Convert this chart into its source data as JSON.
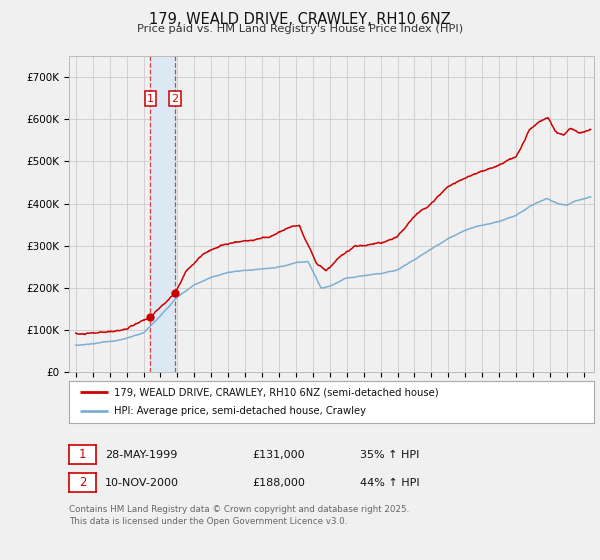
{
  "title": "179, WEALD DRIVE, CRAWLEY, RH10 6NZ",
  "subtitle": "Price paid vs. HM Land Registry's House Price Index (HPI)",
  "background_color": "#f0f0f0",
  "plot_background_color": "#f0f0f0",
  "grid_color": "#cccccc",
  "red_line_color": "#cc0000",
  "blue_line_color": "#7cafd4",
  "purchase1": {
    "date_num": 1999.41,
    "price": 131000,
    "label": "1"
  },
  "purchase2": {
    "date_num": 2000.86,
    "price": 188000,
    "label": "2"
  },
  "vline_color": "#cc4444",
  "vband_color": "#dce9f5",
  "ymax": 750000,
  "ymin": 0,
  "xmin": 1994.6,
  "xmax": 2025.6,
  "yticks": [
    0,
    100000,
    200000,
    300000,
    400000,
    500000,
    600000,
    700000
  ],
  "ytick_labels": [
    "£0",
    "£100K",
    "£200K",
    "£300K",
    "£400K",
    "£500K",
    "£600K",
    "£700K"
  ],
  "legend_red_label": "179, WEALD DRIVE, CRAWLEY, RH10 6NZ (semi-detached house)",
  "legend_blue_label": "HPI: Average price, semi-detached house, Crawley",
  "table_row1": [
    "1",
    "28-MAY-1999",
    "£131,000",
    "35% ↑ HPI"
  ],
  "table_row2": [
    "2",
    "10-NOV-2000",
    "£188,000",
    "44% ↑ HPI"
  ],
  "footnote": "Contains HM Land Registry data © Crown copyright and database right 2025.\nThis data is licensed under the Open Government Licence v3.0."
}
